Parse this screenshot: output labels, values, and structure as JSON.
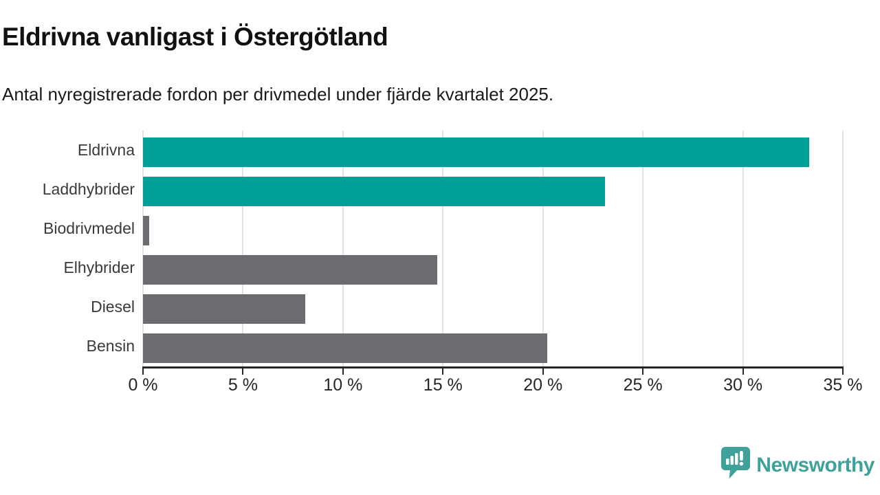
{
  "header": {
    "title": "Eldrivna vanligast i Östergötland",
    "subtitle": "Antal nyregistrerade fordon per drivmedel under fjärde kvartalet 2025."
  },
  "chart_data": {
    "type": "bar",
    "orientation": "horizontal",
    "categories": [
      "Eldrivna",
      "Laddhybrider",
      "Biodrivmedel",
      "Elhybrider",
      "Diesel",
      "Bensin"
    ],
    "values": [
      33.3,
      23.1,
      0.3,
      14.7,
      8.1,
      20.2
    ],
    "unit": "%",
    "bar_colors": [
      "#00A099",
      "#00A099",
      "#6B6B70",
      "#6B6B70",
      "#6B6B70",
      "#6B6B70"
    ],
    "highlight_color": "#00A099",
    "base_color": "#6B6B70",
    "xlim": [
      0,
      35
    ],
    "x_tick_values": [
      0,
      5,
      10,
      15,
      20,
      25,
      30,
      35
    ],
    "x_tick_labels": [
      "0 %",
      "5 %",
      "10 %",
      "15 %",
      "20 %",
      "25 %",
      "30 %",
      "35 %"
    ],
    "grid": "vertical-only",
    "gridline_color": "#e2e2e2",
    "axis_color": "#262626",
    "legend": "none"
  },
  "footer": {
    "brand": "Newsworthy",
    "brand_color": "#3FA29A",
    "logo_icon": "speech-bubble-bar-chart-icon"
  }
}
